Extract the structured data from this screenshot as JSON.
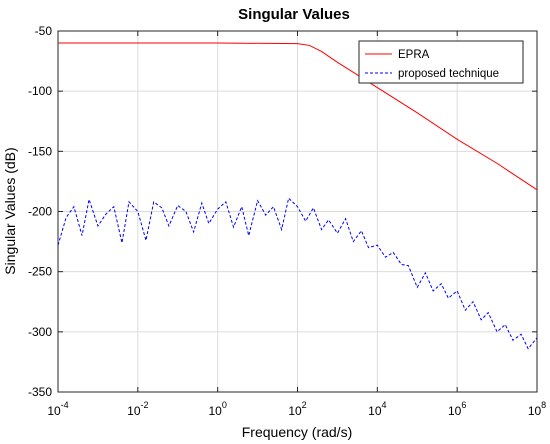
{
  "chart_data": {
    "type": "line",
    "title": "Singular Values",
    "xlabel": "Frequency (rad/s)",
    "ylabel": "Singular Values (dB)",
    "xscale": "log",
    "xlim": [
      0.0001,
      100000000
    ],
    "ylim": [
      -350,
      -50
    ],
    "x_ticks": [
      {
        "base": "10",
        "exp": "-4"
      },
      {
        "base": "10",
        "exp": "-2"
      },
      {
        "base": "10",
        "exp": "0"
      },
      {
        "base": "10",
        "exp": "2"
      },
      {
        "base": "10",
        "exp": "4"
      },
      {
        "base": "10",
        "exp": "6"
      },
      {
        "base": "10",
        "exp": "8"
      }
    ],
    "y_ticks": [
      "-50",
      "-100",
      "-150",
      "-200",
      "-250",
      "-300",
      "-350"
    ],
    "grid": true,
    "legend_position": "top-right",
    "series": [
      {
        "name": "EPRA",
        "color": "#ff0000",
        "style": "solid",
        "x": [
          0.0001,
          1,
          100,
          200,
          400,
          1000,
          3000,
          10000,
          100000,
          1000000,
          10000000,
          100000000
        ],
        "y": [
          -60,
          -60,
          -60.5,
          -62,
          -67,
          -76,
          -86,
          -97,
          -118,
          -140,
          -160,
          -182
        ]
      },
      {
        "name": "proposed technique",
        "color": "#0000ff",
        "style": "dashed",
        "x": [
          0.0001,
          0.00016,
          0.00025,
          0.0004,
          0.0006,
          0.001,
          0.0016,
          0.0025,
          0.004,
          0.006,
          0.01,
          0.016,
          0.025,
          0.04,
          0.06,
          0.1,
          0.16,
          0.25,
          0.4,
          0.6,
          1,
          1.6,
          2.5,
          4,
          6,
          10,
          16,
          25,
          40,
          60,
          100,
          160,
          250,
          400,
          600,
          1000,
          1600,
          2500,
          4000,
          6000,
          10000,
          16000,
          25000,
          40000,
          60000,
          100000,
          160000,
          250000,
          400000,
          600000,
          1000000,
          1600000,
          2500000,
          4000000,
          6000000,
          10000000,
          16000000,
          25000000,
          40000000,
          60000000,
          100000000
        ],
        "y": [
          -228,
          -205,
          -196,
          -220,
          -190,
          -212,
          -202,
          -196,
          -226,
          -192,
          -200,
          -224,
          -192,
          -197,
          -212,
          -195,
          -200,
          -217,
          -193,
          -210,
          -198,
          -192,
          -213,
          -196,
          -220,
          -191,
          -203,
          -196,
          -215,
          -189,
          -196,
          -208,
          -197,
          -215,
          -207,
          -218,
          -206,
          -225,
          -216,
          -230,
          -228,
          -238,
          -234,
          -244,
          -245,
          -263,
          -251,
          -266,
          -260,
          -272,
          -266,
          -282,
          -275,
          -290,
          -284,
          -300,
          -294,
          -307,
          -302,
          -314,
          -305
        ]
      }
    ]
  }
}
